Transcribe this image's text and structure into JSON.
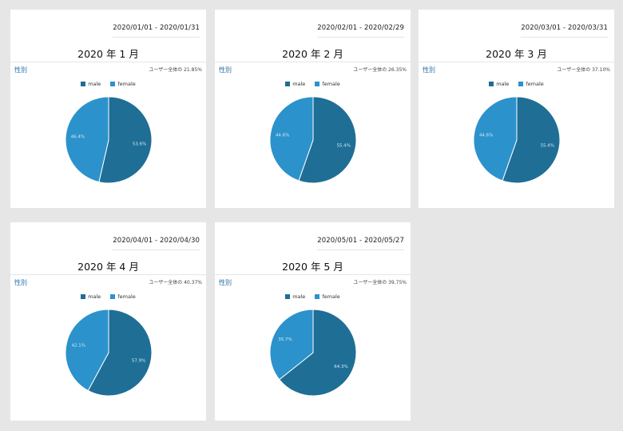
{
  "colors": {
    "male": "#1f6e96",
    "female": "#2b92cc"
  },
  "chart_data": [
    {
      "type": "pie",
      "date_range": "2020/01/01 - 2020/01/31",
      "title": "2020 年 1 月",
      "dimension_label": "性別",
      "share_label": "ユーザー全体の 21.85%",
      "legend": [
        "male",
        "female"
      ],
      "slices": [
        {
          "label": "male",
          "value": 53.6,
          "value_label": "53.6%"
        },
        {
          "label": "female",
          "value": 46.4,
          "value_label": "46.4%"
        }
      ]
    },
    {
      "type": "pie",
      "date_range": "2020/02/01 - 2020/02/29",
      "title": "2020 年 2 月",
      "dimension_label": "性別",
      "share_label": "ユーザー全体の 26.35%",
      "legend": [
        "male",
        "female"
      ],
      "slices": [
        {
          "label": "male",
          "value": 55.4,
          "value_label": "55.4%"
        },
        {
          "label": "female",
          "value": 44.6,
          "value_label": "44.6%"
        }
      ]
    },
    {
      "type": "pie",
      "date_range": "2020/03/01 - 2020/03/31",
      "title": "2020 年 3 月",
      "dimension_label": "性別",
      "share_label": "ユーザー全体の 37.10%",
      "legend": [
        "male",
        "female"
      ],
      "slices": [
        {
          "label": "male",
          "value": 55.4,
          "value_label": "55.4%"
        },
        {
          "label": "female",
          "value": 44.6,
          "value_label": "44.6%"
        }
      ]
    },
    {
      "type": "pie",
      "date_range": "2020/04/01 - 2020/04/30",
      "title": "2020 年 4 月",
      "dimension_label": "性別",
      "share_label": "ユーザー全体の 40.37%",
      "legend": [
        "male",
        "female"
      ],
      "slices": [
        {
          "label": "male",
          "value": 57.9,
          "value_label": "57.9%"
        },
        {
          "label": "female",
          "value": 42.1,
          "value_label": "42.1%"
        }
      ]
    },
    {
      "type": "pie",
      "date_range": "2020/05/01 - 2020/05/27",
      "title": "2020 年 5 月",
      "dimension_label": "性別",
      "share_label": "ユーザー全体の 39.75%",
      "legend": [
        "male",
        "female"
      ],
      "slices": [
        {
          "label": "male",
          "value": 64.3,
          "value_label": "64.3%"
        },
        {
          "label": "female",
          "value": 35.7,
          "value_label": "35.7%"
        }
      ]
    }
  ]
}
